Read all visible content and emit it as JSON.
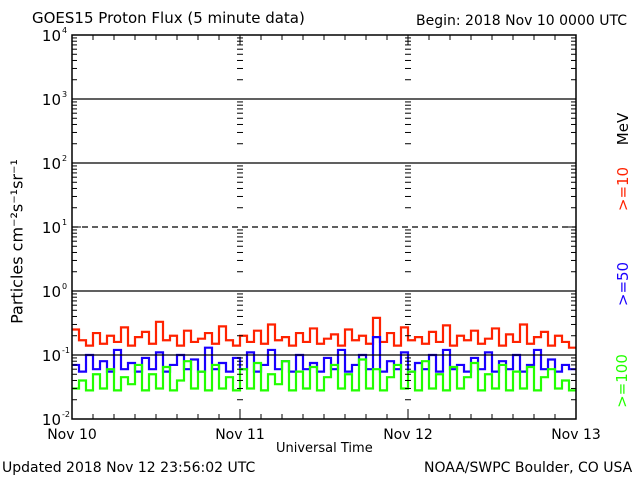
{
  "chart_data": {
    "type": "line",
    "title": "GOES15 Proton Flux (5 minute data)",
    "begin_label": "Begin: 2018 Nov 10 0000 UTC",
    "xlabel": "Universal Time",
    "ylabel": "Particles cm⁻²s⁻¹sr⁻¹",
    "yscale": "log",
    "ylim": [
      0.01,
      10000
    ],
    "y_ticks": [
      {
        "base": "10",
        "exp": "-2",
        "value": 0.01
      },
      {
        "base": "10",
        "exp": "-1",
        "value": 0.1
      },
      {
        "base": "10",
        "exp": "0",
        "value": 1
      },
      {
        "base": "10",
        "exp": "1",
        "value": 10
      },
      {
        "base": "10",
        "exp": "2",
        "value": 100
      },
      {
        "base": "10",
        "exp": "3",
        "value": 1000
      },
      {
        "base": "10",
        "exp": "4",
        "value": 10000
      }
    ],
    "x_ticks": [
      "Nov 10",
      "Nov 11",
      "Nov 12",
      "Nov 13"
    ],
    "x_range_hours": [
      0,
      72
    ],
    "unit_label": "MeV",
    "series": [
      {
        "name": ">=10",
        "color": "#ff2200",
        "values": [
          0.25,
          0.17,
          0.14,
          0.22,
          0.15,
          0.2,
          0.16,
          0.27,
          0.14,
          0.19,
          0.23,
          0.15,
          0.33,
          0.17,
          0.2,
          0.14,
          0.24,
          0.16,
          0.18,
          0.22,
          0.15,
          0.28,
          0.17,
          0.14,
          0.2,
          0.16,
          0.24,
          0.15,
          0.3,
          0.17,
          0.19,
          0.14,
          0.22,
          0.16,
          0.26,
          0.15,
          0.18,
          0.21,
          0.14,
          0.25,
          0.17,
          0.2,
          0.15,
          0.38,
          0.16,
          0.22,
          0.14,
          0.27,
          0.17,
          0.19,
          0.15,
          0.23,
          0.16,
          0.29,
          0.14,
          0.2,
          0.17,
          0.24,
          0.15,
          0.18,
          0.26,
          0.14,
          0.21,
          0.16,
          0.3,
          0.15,
          0.19,
          0.23,
          0.14,
          0.2,
          0.16,
          0.13
        ]
      },
      {
        "name": ">=50",
        "color": "#1a00ff",
        "values": [
          0.07,
          0.055,
          0.1,
          0.06,
          0.08,
          0.055,
          0.12,
          0.06,
          0.075,
          0.055,
          0.09,
          0.06,
          0.11,
          0.055,
          0.07,
          0.1,
          0.06,
          0.085,
          0.055,
          0.13,
          0.06,
          0.075,
          0.055,
          0.09,
          0.06,
          0.11,
          0.055,
          0.07,
          0.12,
          0.06,
          0.08,
          0.055,
          0.1,
          0.06,
          0.075,
          0.055,
          0.09,
          0.06,
          0.12,
          0.055,
          0.07,
          0.1,
          0.06,
          0.19,
          0.055,
          0.08,
          0.06,
          0.11,
          0.055,
          0.075,
          0.06,
          0.1,
          0.055,
          0.12,
          0.06,
          0.07,
          0.055,
          0.09,
          0.06,
          0.11,
          0.055,
          0.08,
          0.06,
          0.1,
          0.055,
          0.07,
          0.12,
          0.06,
          0.085,
          0.055,
          0.07,
          0.06
        ]
      },
      {
        "name": ">=100",
        "color": "#22ff00",
        "values": [
          0.03,
          0.04,
          0.028,
          0.05,
          0.03,
          0.06,
          0.028,
          0.045,
          0.035,
          0.07,
          0.028,
          0.05,
          0.03,
          0.065,
          0.028,
          0.04,
          0.08,
          0.03,
          0.055,
          0.028,
          0.07,
          0.03,
          0.045,
          0.028,
          0.06,
          0.03,
          0.075,
          0.028,
          0.05,
          0.035,
          0.08,
          0.028,
          0.055,
          0.03,
          0.065,
          0.028,
          0.045,
          0.07,
          0.03,
          0.05,
          0.028,
          0.085,
          0.03,
          0.06,
          0.028,
          0.045,
          0.07,
          0.03,
          0.055,
          0.028,
          0.08,
          0.03,
          0.05,
          0.028,
          0.065,
          0.03,
          0.045,
          0.075,
          0.028,
          0.05,
          0.03,
          0.07,
          0.028,
          0.055,
          0.03,
          0.065,
          0.028,
          0.045,
          0.06,
          0.03,
          0.04,
          0.028
        ]
      }
    ]
  },
  "footer": {
    "updated": "Updated 2018 Nov 12 23:56:02 UTC",
    "source": "NOAA/SWPC Boulder, CO USA"
  }
}
